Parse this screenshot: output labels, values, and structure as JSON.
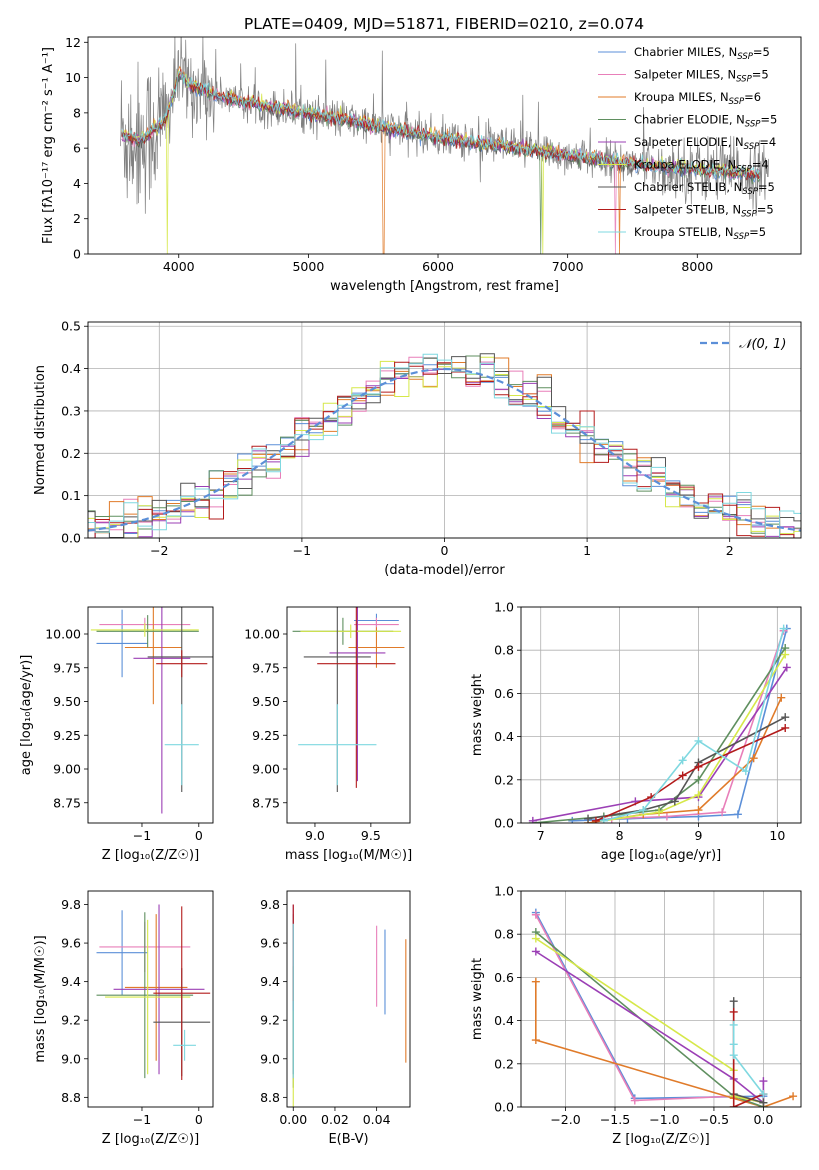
{
  "figure_title": "PLATE=0409, MJD=51871, FIBERID=0210, z=0.074",
  "colors": {
    "chabrier_miles": "#5b8fd8",
    "salpeter_miles": "#e87fb9",
    "kroupa_miles": "#e07b2a",
    "chabrier_elodie": "#5f8f5f",
    "salpeter_elodie": "#9b3fb5",
    "kroupa_elodie": "#d6e84a",
    "chabrier_stelib": "#555555",
    "salpeter_stelib": "#b31b1b",
    "kroupa_stelib": "#7fd8e0",
    "data": "#808080",
    "normal": "#5b8fd8"
  },
  "chart_data": [
    {
      "type": "line",
      "title": "PLATE=0409, MJD=51871, FIBERID=0210, z=0.074",
      "xlabel": "wavelength [Angstrom, rest frame]",
      "ylabel": "Flux [fλ10⁻¹⁷ erg cm⁻² s⁻¹ A⁻¹]",
      "xlim": [
        3300,
        8800
      ],
      "ylim": [
        0,
        12.3
      ],
      "xticks": [
        4000,
        5000,
        6000,
        7000,
        8000
      ],
      "yticks": [
        0,
        2,
        4,
        6,
        8,
        10,
        12
      ],
      "grid": false,
      "legend_position": "top-right",
      "legend": [
        {
          "key": "chabrier_miles",
          "label": "Chabrier MILES, N",
          "sub": "SSP",
          "suffix": "=5"
        },
        {
          "key": "salpeter_miles",
          "label": "Salpeter MILES, N",
          "sub": "SSP",
          "suffix": "=5"
        },
        {
          "key": "kroupa_miles",
          "label": "Kroupa MILES, N",
          "sub": "SSP",
          "suffix": "=6"
        },
        {
          "key": "chabrier_elodie",
          "label": "Chabrier ELODIE, N",
          "sub": "SSP",
          "suffix": "=5"
        },
        {
          "key": "salpeter_elodie",
          "label": "Salpeter ELODIE, N",
          "sub": "SSP",
          "suffix": "=4"
        },
        {
          "key": "kroupa_elodie",
          "label": "Kroupa ELODIE, N",
          "sub": "SSP",
          "suffix": "=4"
        },
        {
          "key": "chabrier_stelib",
          "label": "Chabrier STELIB, N",
          "sub": "SSP",
          "suffix": "=5"
        },
        {
          "key": "salpeter_stelib",
          "label": "Salpeter STELIB, N",
          "sub": "SSP",
          "suffix": "=5"
        },
        {
          "key": "kroupa_stelib",
          "label": "Kroupa STELIB, N",
          "sub": "SSP",
          "suffix": "=5"
        }
      ],
      "continuum": {
        "x": [
          3550,
          3700,
          3900,
          4000,
          4100,
          4300,
          4500,
          5000,
          5500,
          6000,
          6500,
          7000,
          7500,
          8000,
          8500
        ],
        "y": [
          6.8,
          6.4,
          7.6,
          10.2,
          9.5,
          9.0,
          8.6,
          8.0,
          7.3,
          6.6,
          6.1,
          5.6,
          5.1,
          4.8,
          4.5
        ]
      },
      "data_range": [
        3550,
        8550
      ]
    },
    {
      "type": "histogram",
      "xlabel": "(data-model)/error",
      "ylabel": "Normed distribution",
      "xlim": [
        -2.5,
        2.5
      ],
      "ylim": [
        0,
        0.51
      ],
      "xticks": [
        -2,
        -1,
        0,
        1,
        2
      ],
      "yticks": [
        0,
        0.1,
        0.2,
        0.3,
        0.4,
        0.5
      ],
      "grid": true,
      "legend_position": "top-right",
      "normal_label": "𝒩(0, 1)",
      "bin_width": 0.1
    },
    {
      "type": "errorbar",
      "xlabel": "Z [log₁₀(Z/Z☉)]",
      "ylabel": "age  [log₁₀(age/yr)]",
      "xlim": [
        -1.95,
        0.25
      ],
      "ylim": [
        8.6,
        10.2
      ],
      "xticks": [
        -1,
        0
      ],
      "yticks": [
        8.75,
        9.0,
        9.25,
        9.5,
        9.75,
        10.0
      ],
      "points": [
        {
          "key": "chabrier_miles",
          "x": -1.35,
          "xerr": 0.45,
          "y": 9.93,
          "yerr": 0.25
        },
        {
          "key": "salpeter_miles",
          "x": -0.95,
          "xerr": 0.8,
          "y": 10.07,
          "yerr": 0.05
        },
        {
          "key": "kroupa_miles",
          "x": -0.8,
          "xerr": 0.5,
          "y": 9.9,
          "yerr": 0.42
        },
        {
          "key": "chabrier_elodie",
          "x": -0.9,
          "xerr": 0.9,
          "y": 10.02,
          "yerr": 0.12
        },
        {
          "key": "salpeter_elodie",
          "x": -0.65,
          "xerr": 0.5,
          "y": 9.82,
          "yerr": 1.15
        },
        {
          "key": "kroupa_elodie",
          "x": -0.95,
          "xerr": 0.95,
          "y": 10.03,
          "yerr": 0.05
        },
        {
          "key": "chabrier_stelib",
          "x": -0.3,
          "xerr": 0.6,
          "y": 9.83,
          "yerr": 1.0
        },
        {
          "key": "salpeter_stelib",
          "x": -0.3,
          "xerr": 0.45,
          "y": 9.78,
          "yerr": 0.1
        },
        {
          "key": "kroupa_stelib",
          "x": -0.3,
          "xerr": 0.3,
          "y": 9.18,
          "yerr": 0.3
        }
      ]
    },
    {
      "type": "errorbar",
      "xlabel": "mass [log₁₀(M/M☉)]",
      "ylabel": "",
      "xlim": [
        8.75,
        9.85
      ],
      "ylim": [
        8.6,
        10.2
      ],
      "xticks": [
        9.0,
        9.5
      ],
      "yticks": [
        8.75,
        9.0,
        9.25,
        9.5,
        9.75,
        10.0
      ],
      "points": [
        {
          "key": "chabrier_miles",
          "x": 9.55,
          "xerr": 0.2,
          "y": 10.1,
          "yerr": 0.05
        },
        {
          "key": "salpeter_miles",
          "x": 9.55,
          "xerr": 0.2,
          "y": 10.07,
          "yerr": 0.05
        },
        {
          "key": "kroupa_miles",
          "x": 9.55,
          "xerr": 0.25,
          "y": 9.9,
          "yerr": 0.15
        },
        {
          "key": "chabrier_elodie",
          "x": 9.25,
          "xerr": 0.45,
          "y": 10.02,
          "yerr": 0.1
        },
        {
          "key": "salpeter_elodie",
          "x": 9.38,
          "xerr": 0.25,
          "y": 9.86,
          "yerr": 0.95
        },
        {
          "key": "kroupa_elodie",
          "x": 9.32,
          "xerr": 0.45,
          "y": 10.02,
          "yerr": 0.05
        },
        {
          "key": "chabrier_stelib",
          "x": 9.2,
          "xerr": 0.3,
          "y": 9.83,
          "yerr": 1.0
        },
        {
          "key": "salpeter_stelib",
          "x": 9.37,
          "xerr": 0.35,
          "y": 9.78,
          "yerr": 0.92
        },
        {
          "key": "kroupa_stelib",
          "x": 9.2,
          "xerr": 0.35,
          "y": 9.18,
          "yerr": 0.3
        }
      ]
    },
    {
      "type": "line",
      "xlabel": "age  [log₁₀(age/yr)]",
      "ylabel": "mass weight",
      "xlim": [
        6.75,
        10.3
      ],
      "ylim": [
        0,
        1.0
      ],
      "xticks": [
        7,
        8,
        9,
        10
      ],
      "yticks": [
        0,
        0.2,
        0.4,
        0.6,
        0.8,
        1.0
      ],
      "grid": true,
      "series": [
        {
          "key": "chabrier_miles",
          "x": [
            7.4,
            8.1,
            9.0,
            9.5,
            10.12
          ],
          "y": [
            0.01,
            0.02,
            0.03,
            0.04,
            0.9
          ]
        },
        {
          "key": "salpeter_miles",
          "x": [
            7.9,
            8.6,
            9.3,
            10.08
          ],
          "y": [
            0.02,
            0.03,
            0.05,
            0.89
          ]
        },
        {
          "key": "kroupa_miles",
          "x": [
            7.6,
            8.3,
            9.0,
            9.7,
            10.05
          ],
          "y": [
            0.0,
            0.04,
            0.06,
            0.3,
            0.58
          ]
        },
        {
          "key": "chabrier_elodie",
          "x": [
            6.9,
            7.8,
            8.5,
            9.0,
            10.1
          ],
          "y": [
            0.0,
            0.03,
            0.06,
            0.2,
            0.81
          ]
        },
        {
          "key": "salpeter_elodie",
          "x": [
            6.9,
            8.2,
            9.0,
            10.12
          ],
          "y": [
            0.01,
            0.1,
            0.12,
            0.72
          ]
        },
        {
          "key": "kroupa_elodie",
          "x": [
            7.8,
            8.5,
            9.0,
            10.1
          ],
          "y": [
            0.01,
            0.05,
            0.13,
            0.78
          ]
        },
        {
          "key": "chabrier_stelib",
          "x": [
            7.6,
            8.3,
            8.7,
            9.0,
            10.1
          ],
          "y": [
            0.02,
            0.06,
            0.1,
            0.28,
            0.49
          ]
        },
        {
          "key": "salpeter_stelib",
          "x": [
            7.7,
            8.4,
            8.8,
            9.0,
            10.1
          ],
          "y": [
            0.01,
            0.12,
            0.22,
            0.26,
            0.44
          ]
        },
        {
          "key": "kroupa_stelib",
          "x": [
            7.8,
            8.3,
            8.8,
            9.0,
            9.6,
            10.08
          ],
          "y": [
            0.01,
            0.06,
            0.29,
            0.38,
            0.24,
            0.9
          ]
        }
      ]
    },
    {
      "type": "errorbar",
      "xlabel": "Z [log₁₀(Z/Z☉)]",
      "ylabel": "mass [log₁₀(M/M☉)]",
      "xlim": [
        -1.95,
        0.25
      ],
      "ylim": [
        8.75,
        9.87
      ],
      "xticks": [
        -1,
        0
      ],
      "yticks": [
        8.8,
        9.0,
        9.2,
        9.4,
        9.6,
        9.8
      ],
      "points": [
        {
          "key": "chabrier_miles",
          "x": -1.35,
          "xerr": 0.45,
          "y": 9.55,
          "yerr": 0.22
        },
        {
          "key": "salpeter_miles",
          "x": -0.95,
          "xerr": 0.8,
          "y": 9.58,
          "yerr": 0.13
        },
        {
          "key": "kroupa_miles",
          "x": -0.75,
          "xerr": 0.55,
          "y": 9.37,
          "yerr": 0.38
        },
        {
          "key": "chabrier_elodie",
          "x": -0.95,
          "xerr": 0.85,
          "y": 9.33,
          "yerr": 0.43
        },
        {
          "key": "salpeter_elodie",
          "x": -0.7,
          "xerr": 0.8,
          "y": 9.36,
          "yerr": 0.44
        },
        {
          "key": "kroupa_elodie",
          "x": -0.9,
          "xerr": 0.75,
          "y": 9.32,
          "yerr": 0.4
        },
        {
          "key": "chabrier_stelib",
          "x": -0.3,
          "xerr": 0.5,
          "y": 9.19,
          "yerr": 0.28
        },
        {
          "key": "salpeter_stelib",
          "x": -0.3,
          "xerr": 0.5,
          "y": 9.34,
          "yerr": 0.45
        },
        {
          "key": "kroupa_stelib",
          "x": -0.25,
          "xerr": 0.2,
          "y": 9.07,
          "yerr": 0.08
        }
      ]
    },
    {
      "type": "errorbar",
      "xlabel": "E(B-V)",
      "ylabel": "",
      "xlim": [
        -0.003,
        0.056
      ],
      "ylim": [
        8.75,
        9.87
      ],
      "xticks": [
        0.0,
        0.02,
        0.04
      ],
      "yticks": [
        8.8,
        9.0,
        9.2,
        9.4,
        9.6,
        9.8
      ],
      "points": [
        {
          "key": "chabrier_miles",
          "x": 0.044,
          "xerr": 0.0,
          "y": 9.45,
          "yerr": 0.22
        },
        {
          "key": "salpeter_miles",
          "x": 0.04,
          "xerr": 0.0,
          "y": 9.48,
          "yerr": 0.21
        },
        {
          "key": "kroupa_miles",
          "x": 0.054,
          "xerr": 0.0,
          "y": 9.3,
          "yerr": 0.32
        },
        {
          "key": "chabrier_elodie",
          "x": 0.0,
          "xerr": 0.0,
          "y": 9.3,
          "yerr": 0.45
        },
        {
          "key": "salpeter_elodie",
          "x": 0.0,
          "xerr": 0.0,
          "y": 9.35,
          "yerr": 0.45
        },
        {
          "key": "kroupa_elodie",
          "x": 0.0,
          "xerr": 0.0,
          "y": 9.0,
          "yerr": 0.25
        },
        {
          "key": "chabrier_stelib",
          "x": 0.0,
          "xerr": 0.0,
          "y": 9.2,
          "yerr": 0.28
        },
        {
          "key": "salpeter_stelib",
          "x": 0.0,
          "xerr": 0.0,
          "y": 9.55,
          "yerr": 0.25
        },
        {
          "key": "kroupa_stelib",
          "x": 0.0,
          "xerr": 0.0,
          "y": 9.3,
          "yerr": 0.4
        }
      ]
    },
    {
      "type": "line",
      "xlabel": "Z [log₁₀(Z/Z☉)]",
      "ylabel": "mass weight",
      "xlim": [
        -2.45,
        0.38
      ],
      "ylim": [
        0,
        1.0
      ],
      "xticks": [
        -2.0,
        -1.5,
        -1.0,
        -0.5,
        0.0
      ],
      "yticks": [
        0,
        0.2,
        0.4,
        0.6,
        0.8,
        1.0
      ],
      "grid": true,
      "series": [
        {
          "key": "chabrier_miles",
          "x": [
            -2.3,
            -1.3,
            0.0,
            0.0
          ],
          "y": [
            0.9,
            0.04,
            0.05,
            0.0
          ]
        },
        {
          "key": "salpeter_miles",
          "x": [
            -2.3,
            -1.3,
            -0.3,
            0.0
          ],
          "y": [
            0.89,
            0.03,
            0.05,
            0.02
          ]
        },
        {
          "key": "kroupa_miles",
          "x": [
            -2.3,
            -2.3,
            -0.3,
            0.0,
            0.3
          ],
          "y": [
            0.58,
            0.31,
            0.04,
            0.0,
            0.05
          ]
        },
        {
          "key": "chabrier_elodie",
          "x": [
            -2.3,
            -0.3,
            0.0
          ],
          "y": [
            0.81,
            0.05,
            0.0
          ]
        },
        {
          "key": "salpeter_elodie",
          "x": [
            -2.3,
            -0.3,
            0.0,
            0.0
          ],
          "y": [
            0.72,
            0.13,
            0.02,
            0.12
          ]
        },
        {
          "key": "kroupa_elodie",
          "x": [
            -2.3,
            -0.3,
            -0.3,
            0.0
          ],
          "y": [
            0.78,
            0.17,
            0.05,
            0.02
          ]
        },
        {
          "key": "chabrier_stelib",
          "x": [
            -0.3,
            -0.3,
            0.0
          ],
          "y": [
            0.49,
            0.06,
            0.02
          ]
        },
        {
          "key": "salpeter_stelib",
          "x": [
            -0.3,
            -0.3,
            0.0
          ],
          "y": [
            0.44,
            0.0,
            0.06
          ]
        },
        {
          "key": "kroupa_stelib",
          "x": [
            -0.3,
            -0.3,
            -0.3,
            0.0
          ],
          "y": [
            0.38,
            0.29,
            0.24,
            0.06
          ]
        }
      ]
    }
  ]
}
